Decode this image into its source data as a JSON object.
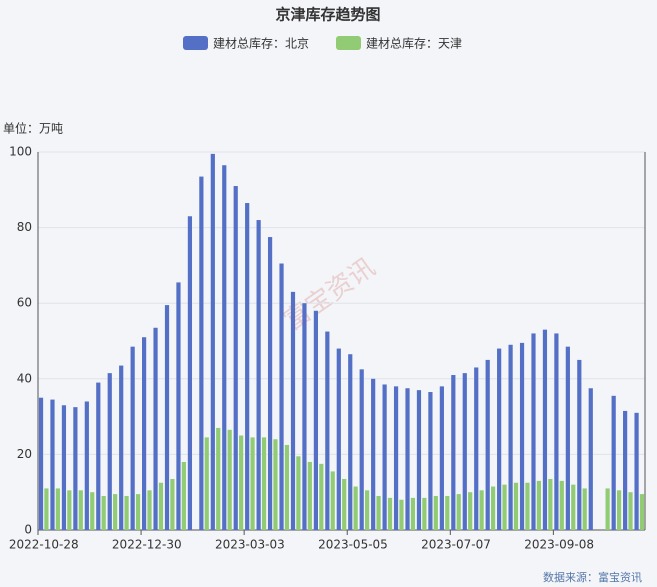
{
  "chart_data": {
    "type": "bar",
    "title": "京津库存趋势图",
    "unit_label": "单位：万吨",
    "source": "数据来源：富宝资讯",
    "watermark": "富宝资讯",
    "categories": [
      "2022-10-28",
      null,
      null,
      null,
      null,
      null,
      null,
      null,
      null,
      "2022-12-30",
      null,
      null,
      null,
      null,
      null,
      null,
      null,
      null,
      "2023-03-03",
      null,
      null,
      null,
      null,
      null,
      null,
      null,
      null,
      "2023-05-05",
      null,
      null,
      null,
      null,
      null,
      null,
      null,
      null,
      "2023-07-07",
      null,
      null,
      null,
      null,
      null,
      null,
      null,
      null,
      "2023-09-08",
      null,
      null,
      null,
      null,
      null,
      null,
      null
    ],
    "series": [
      {
        "name": "建材总库存：北京",
        "color": "#5470c6",
        "values": [
          35,
          34.5,
          33,
          32.5,
          34,
          39,
          41.5,
          43.5,
          48.5,
          51,
          53.5,
          59.5,
          65.5,
          83,
          93.5,
          99.5,
          96.5,
          91,
          86.5,
          82,
          77.5,
          70.5,
          63,
          60,
          58,
          52.5,
          48,
          46.5,
          42.5,
          40,
          38.5,
          38,
          37.5,
          37,
          36.5,
          38,
          41,
          41.5,
          43,
          45,
          48,
          49,
          49.5,
          52,
          53,
          52,
          48.5,
          45,
          37.5,
          null,
          35.5,
          31.5,
          31
        ]
      },
      {
        "name": "建材总库存：天津",
        "color": "#91cc75",
        "values": [
          11,
          11,
          10.5,
          10.5,
          10,
          9,
          9.5,
          9,
          9.5,
          10.5,
          12.5,
          13.5,
          18,
          null,
          24.5,
          27,
          26.5,
          25,
          24.5,
          24.5,
          24,
          22.5,
          19.5,
          18,
          17.5,
          15.5,
          13.5,
          11.5,
          10.5,
          9,
          8.5,
          8,
          8.5,
          8.5,
          9,
          9,
          9.5,
          10,
          10.5,
          11.5,
          12,
          12.5,
          12.5,
          13,
          13.5,
          13,
          12,
          11,
          null,
          11,
          10.5,
          10,
          9.5
        ]
      }
    ],
    "ylim": [
      0,
      100
    ],
    "yticks": [
      0,
      20,
      40,
      60,
      80,
      100
    ],
    "grid": true
  }
}
